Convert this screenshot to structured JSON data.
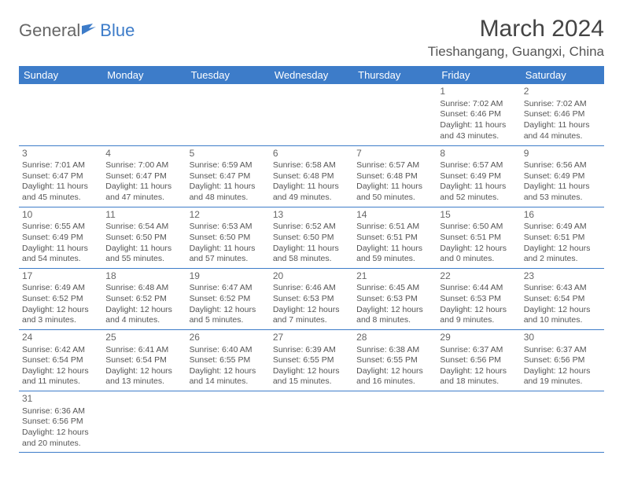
{
  "brand": {
    "part1": "General",
    "part2": "Blue"
  },
  "title": "March 2024",
  "location": "Tieshangang, Guangxi, China",
  "colors": {
    "header_bg": "#3d7cc9",
    "header_text": "#ffffff",
    "border": "#3d7cc9",
    "body_text": "#555555",
    "title_text": "#444444",
    "background": "#ffffff"
  },
  "typography": {
    "title_fontsize": 30,
    "location_fontsize": 17,
    "dayheader_fontsize": 13,
    "cell_fontsize": 10.5,
    "daynum_fontsize": 12
  },
  "weekdays": [
    "Sunday",
    "Monday",
    "Tuesday",
    "Wednesday",
    "Thursday",
    "Friday",
    "Saturday"
  ],
  "weeks": [
    [
      null,
      null,
      null,
      null,
      null,
      {
        "n": "1",
        "sr": "Sunrise: 7:02 AM",
        "ss": "Sunset: 6:46 PM",
        "dl": "Daylight: 11 hours and 43 minutes."
      },
      {
        "n": "2",
        "sr": "Sunrise: 7:02 AM",
        "ss": "Sunset: 6:46 PM",
        "dl": "Daylight: 11 hours and 44 minutes."
      }
    ],
    [
      {
        "n": "3",
        "sr": "Sunrise: 7:01 AM",
        "ss": "Sunset: 6:47 PM",
        "dl": "Daylight: 11 hours and 45 minutes."
      },
      {
        "n": "4",
        "sr": "Sunrise: 7:00 AM",
        "ss": "Sunset: 6:47 PM",
        "dl": "Daylight: 11 hours and 47 minutes."
      },
      {
        "n": "5",
        "sr": "Sunrise: 6:59 AM",
        "ss": "Sunset: 6:47 PM",
        "dl": "Daylight: 11 hours and 48 minutes."
      },
      {
        "n": "6",
        "sr": "Sunrise: 6:58 AM",
        "ss": "Sunset: 6:48 PM",
        "dl": "Daylight: 11 hours and 49 minutes."
      },
      {
        "n": "7",
        "sr": "Sunrise: 6:57 AM",
        "ss": "Sunset: 6:48 PM",
        "dl": "Daylight: 11 hours and 50 minutes."
      },
      {
        "n": "8",
        "sr": "Sunrise: 6:57 AM",
        "ss": "Sunset: 6:49 PM",
        "dl": "Daylight: 11 hours and 52 minutes."
      },
      {
        "n": "9",
        "sr": "Sunrise: 6:56 AM",
        "ss": "Sunset: 6:49 PM",
        "dl": "Daylight: 11 hours and 53 minutes."
      }
    ],
    [
      {
        "n": "10",
        "sr": "Sunrise: 6:55 AM",
        "ss": "Sunset: 6:49 PM",
        "dl": "Daylight: 11 hours and 54 minutes."
      },
      {
        "n": "11",
        "sr": "Sunrise: 6:54 AM",
        "ss": "Sunset: 6:50 PM",
        "dl": "Daylight: 11 hours and 55 minutes."
      },
      {
        "n": "12",
        "sr": "Sunrise: 6:53 AM",
        "ss": "Sunset: 6:50 PM",
        "dl": "Daylight: 11 hours and 57 minutes."
      },
      {
        "n": "13",
        "sr": "Sunrise: 6:52 AM",
        "ss": "Sunset: 6:50 PM",
        "dl": "Daylight: 11 hours and 58 minutes."
      },
      {
        "n": "14",
        "sr": "Sunrise: 6:51 AM",
        "ss": "Sunset: 6:51 PM",
        "dl": "Daylight: 11 hours and 59 minutes."
      },
      {
        "n": "15",
        "sr": "Sunrise: 6:50 AM",
        "ss": "Sunset: 6:51 PM",
        "dl": "Daylight: 12 hours and 0 minutes."
      },
      {
        "n": "16",
        "sr": "Sunrise: 6:49 AM",
        "ss": "Sunset: 6:51 PM",
        "dl": "Daylight: 12 hours and 2 minutes."
      }
    ],
    [
      {
        "n": "17",
        "sr": "Sunrise: 6:49 AM",
        "ss": "Sunset: 6:52 PM",
        "dl": "Daylight: 12 hours and 3 minutes."
      },
      {
        "n": "18",
        "sr": "Sunrise: 6:48 AM",
        "ss": "Sunset: 6:52 PM",
        "dl": "Daylight: 12 hours and 4 minutes."
      },
      {
        "n": "19",
        "sr": "Sunrise: 6:47 AM",
        "ss": "Sunset: 6:52 PM",
        "dl": "Daylight: 12 hours and 5 minutes."
      },
      {
        "n": "20",
        "sr": "Sunrise: 6:46 AM",
        "ss": "Sunset: 6:53 PM",
        "dl": "Daylight: 12 hours and 7 minutes."
      },
      {
        "n": "21",
        "sr": "Sunrise: 6:45 AM",
        "ss": "Sunset: 6:53 PM",
        "dl": "Daylight: 12 hours and 8 minutes."
      },
      {
        "n": "22",
        "sr": "Sunrise: 6:44 AM",
        "ss": "Sunset: 6:53 PM",
        "dl": "Daylight: 12 hours and 9 minutes."
      },
      {
        "n": "23",
        "sr": "Sunrise: 6:43 AM",
        "ss": "Sunset: 6:54 PM",
        "dl": "Daylight: 12 hours and 10 minutes."
      }
    ],
    [
      {
        "n": "24",
        "sr": "Sunrise: 6:42 AM",
        "ss": "Sunset: 6:54 PM",
        "dl": "Daylight: 12 hours and 11 minutes."
      },
      {
        "n": "25",
        "sr": "Sunrise: 6:41 AM",
        "ss": "Sunset: 6:54 PM",
        "dl": "Daylight: 12 hours and 13 minutes."
      },
      {
        "n": "26",
        "sr": "Sunrise: 6:40 AM",
        "ss": "Sunset: 6:55 PM",
        "dl": "Daylight: 12 hours and 14 minutes."
      },
      {
        "n": "27",
        "sr": "Sunrise: 6:39 AM",
        "ss": "Sunset: 6:55 PM",
        "dl": "Daylight: 12 hours and 15 minutes."
      },
      {
        "n": "28",
        "sr": "Sunrise: 6:38 AM",
        "ss": "Sunset: 6:55 PM",
        "dl": "Daylight: 12 hours and 16 minutes."
      },
      {
        "n": "29",
        "sr": "Sunrise: 6:37 AM",
        "ss": "Sunset: 6:56 PM",
        "dl": "Daylight: 12 hours and 18 minutes."
      },
      {
        "n": "30",
        "sr": "Sunrise: 6:37 AM",
        "ss": "Sunset: 6:56 PM",
        "dl": "Daylight: 12 hours and 19 minutes."
      }
    ],
    [
      {
        "n": "31",
        "sr": "Sunrise: 6:36 AM",
        "ss": "Sunset: 6:56 PM",
        "dl": "Daylight: 12 hours and 20 minutes."
      },
      null,
      null,
      null,
      null,
      null,
      null
    ]
  ]
}
